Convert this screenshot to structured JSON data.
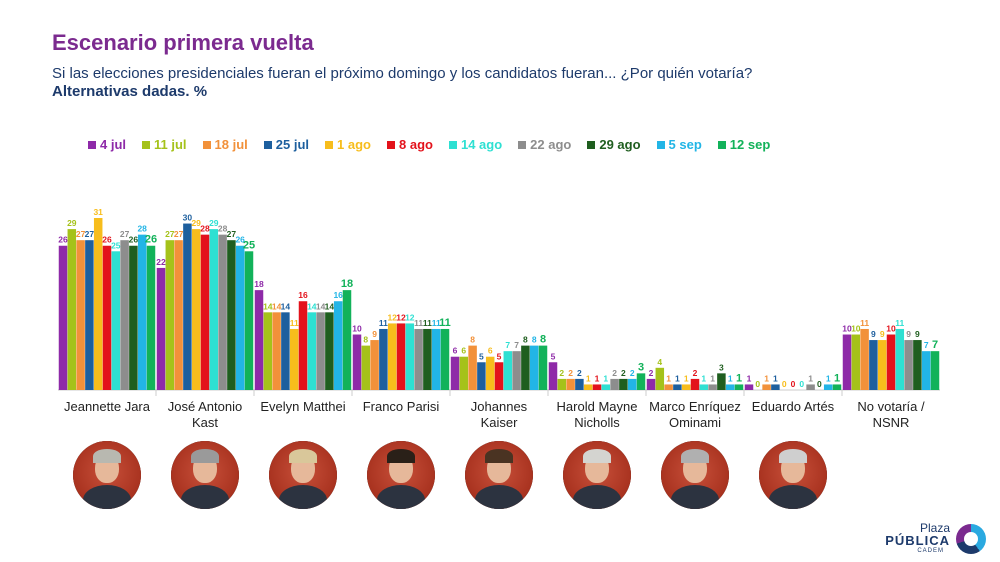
{
  "header": {
    "title": "Escenario primera vuelta",
    "subtitle": "Si las elecciones presidenciales fueran el próximo domingo y los candidatos fueran... ¿Por quién votaría?",
    "subtitle2": "Alternativas dadas. %"
  },
  "logo": {
    "line1": "Plaza",
    "line2": "PÚBLICA",
    "line3": "CADEM"
  },
  "chart_data": {
    "type": "bar",
    "title": "Escenario primera vuelta",
    "legend_position": "top",
    "ylim": [
      0,
      31
    ],
    "grid": false,
    "categories": [
      "Jeannette Jara",
      "José Antonio Kast",
      "Evelyn Matthei",
      "Franco Parisi",
      "Johannes Kaiser",
      "Harold Mayne Nicholls",
      "Marco Enríquez Ominami",
      "Eduardo Artés",
      "No votaría / NSNR"
    ],
    "category_lines": [
      [
        "Jeannette Jara"
      ],
      [
        "José Antonio",
        "Kast"
      ],
      [
        "Evelyn Matthei"
      ],
      [
        "Franco Parisi"
      ],
      [
        "Johannes",
        "Kaiser"
      ],
      [
        "Harold Mayne",
        "Nicholls"
      ],
      [
        "Marco Enríquez",
        "Ominami"
      ],
      [
        "Eduardo Artés"
      ],
      [
        "No votaría /",
        "NSNR"
      ]
    ],
    "series": [
      {
        "name": "4 jul",
        "color": "#8e2aa8",
        "values": [
          26,
          22,
          18,
          10,
          6,
          5,
          2,
          1,
          10
        ]
      },
      {
        "name": "11 jul",
        "color": "#a5c21a",
        "values": [
          29,
          27,
          14,
          8,
          6,
          2,
          4,
          0,
          10
        ]
      },
      {
        "name": "18 jul",
        "color": "#f2913a",
        "values": [
          27,
          27,
          14,
          9,
          8,
          2,
          1,
          1,
          11
        ]
      },
      {
        "name": "25 jul",
        "color": "#1d5f9e",
        "values": [
          27,
          30,
          14,
          11,
          5,
          2,
          1,
          1,
          9
        ]
      },
      {
        "name": "1 ago",
        "color": "#f7bd1c",
        "values": [
          31,
          29,
          11,
          12,
          6,
          1,
          1,
          0,
          9
        ]
      },
      {
        "name": "8 ago",
        "color": "#e3121b",
        "values": [
          26,
          28,
          16,
          12,
          5,
          1,
          2,
          0,
          10
        ]
      },
      {
        "name": "14 ago",
        "color": "#2ee0d2",
        "values": [
          25,
          29,
          14,
          12,
          7,
          1,
          1,
          0,
          11
        ]
      },
      {
        "name": "22 ago",
        "color": "#8d8d8d",
        "values": [
          27,
          28,
          14,
          11,
          7,
          2,
          1,
          1,
          9
        ]
      },
      {
        "name": "29 ago",
        "color": "#1f5e1f",
        "values": [
          26,
          27,
          14,
          11,
          8,
          2,
          3,
          0,
          9
        ]
      },
      {
        "name": "5 sep",
        "color": "#22b5e6",
        "values": [
          28,
          26,
          16,
          11,
          8,
          2,
          1,
          1,
          7
        ]
      },
      {
        "name": "12 sep",
        "color": "#12b25a",
        "values": [
          26,
          25,
          18,
          11,
          8,
          3,
          1,
          1,
          7
        ]
      }
    ]
  },
  "photos": [
    {
      "name": "Jeannette Jara",
      "hair": "#b8b8b0"
    },
    {
      "name": "José Antonio Kast",
      "hair": "#9a9a9a"
    },
    {
      "name": "Evelyn Matthei",
      "hair": "#d9c79a"
    },
    {
      "name": "Franco Parisi",
      "hair": "#2a2018"
    },
    {
      "name": "Johannes Kaiser",
      "hair": "#4a3322"
    },
    {
      "name": "Harold Mayne Nicholls",
      "hair": "#d4d4d0"
    },
    {
      "name": "Marco Enríquez Ominami",
      "hair": "#b0b0b0"
    },
    {
      "name": "Eduardo Artés",
      "hair": "#cfcfcf"
    }
  ]
}
